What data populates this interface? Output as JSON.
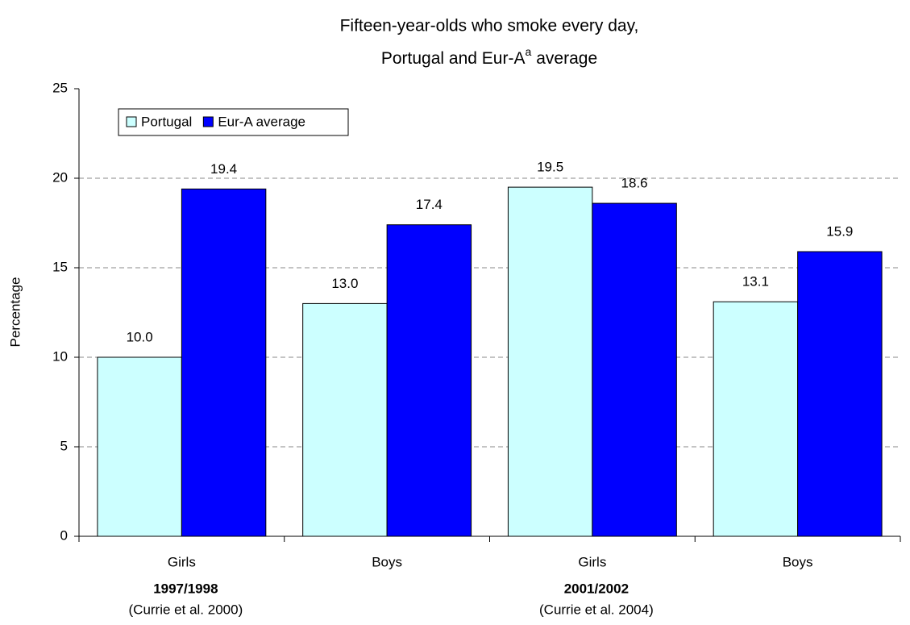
{
  "chart_data": {
    "type": "bar",
    "title": "Fifteen-year-olds who smoke every day,",
    "subtitle": "Portugal and Eur-A",
    "subtitle_superscript": "a",
    "subtitle_end": "average",
    "y_label": "Percentage",
    "categories": [
      "Girls",
      "Boys",
      "Girls",
      "Boys"
    ],
    "groups": [
      {
        "label": "1997/1998",
        "note": "(Currie et al. 2000)",
        "span": 2
      },
      {
        "label": "2001/2002",
        "note": "(Currie et al. 2004)",
        "span": 2
      }
    ],
    "series": [
      {
        "name": "Portugal",
        "color": "#ccffff",
        "values": [
          10.0,
          13.0,
          19.5,
          13.1
        ],
        "value_labels": [
          "10.0",
          "13.0",
          "19.5",
          "13.1"
        ]
      },
      {
        "name": "Eur-A average",
        "color": "#0000ff",
        "values": [
          19.4,
          17.4,
          18.6,
          15.9
        ],
        "value_labels": [
          "19.4",
          "17.4",
          "18.6",
          "15.9"
        ]
      }
    ],
    "ylim": [
      0,
      25
    ],
    "yticks": [
      0,
      5,
      10,
      15,
      20,
      25
    ],
    "grid": true,
    "legend": "top-left"
  }
}
